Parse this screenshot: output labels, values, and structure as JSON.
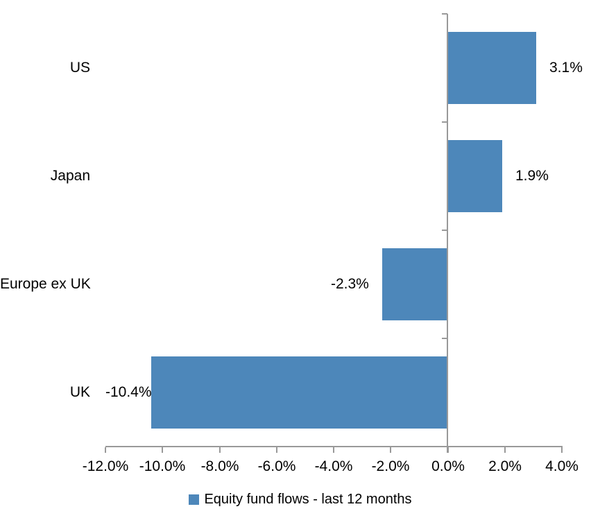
{
  "chart_data": {
    "type": "bar",
    "orientation": "horizontal",
    "categories": [
      "US",
      "Japan",
      "Europe ex UK",
      "UK"
    ],
    "series": [
      {
        "name": "Equity fund flows - last 12 months",
        "values": [
          3.1,
          1.9,
          -2.3,
          -10.4
        ],
        "data_labels": [
          "3.1%",
          "1.9%",
          "-2.3%",
          "-10.4%"
        ]
      }
    ],
    "xlim": [
      -12,
      4
    ],
    "x_ticks": [
      -12,
      -10,
      -8,
      -6,
      -4,
      -2,
      0,
      2,
      4
    ],
    "x_tick_labels": [
      "-12.0%",
      "-10.0%",
      "-8.0%",
      "-6.0%",
      "-4.0%",
      "-2.0%",
      "0.0%",
      "2.0%",
      "4.0%"
    ],
    "grid": false,
    "legend": {
      "position": "bottom",
      "marker": "square",
      "label": "Equity fund flows - last 12 months"
    },
    "colors": {
      "bar": "#4D87BA",
      "axis": "#999999",
      "text": "#000000",
      "background": "#FFFFFF"
    }
  }
}
